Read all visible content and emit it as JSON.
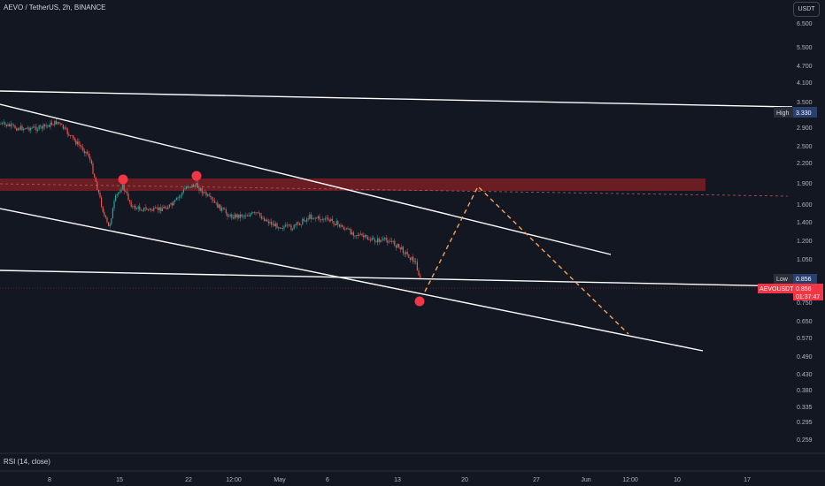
{
  "header": {
    "title": "AEVO / TetherUS, 2h, BINANCE",
    "currency_button": "USDT"
  },
  "indicator": {
    "label": "RSI (14, close)"
  },
  "price_axis": {
    "ticks": [
      "6.500",
      "5.500",
      "4.700",
      "4.100",
      "3.500",
      "2.900",
      "2.500",
      "2.200",
      "1.900",
      "1.600",
      "1.400",
      "1.200",
      "1.050",
      "0.750",
      "0.650",
      "0.570",
      "0.490",
      "0.430",
      "0.380",
      "0.335",
      "0.295",
      "0.259"
    ]
  },
  "time_axis": {
    "ticks": [
      "8",
      "15",
      "22",
      "12:00",
      "May",
      "6",
      "13",
      "20",
      "27",
      "Jun",
      "12:00",
      "10",
      "17"
    ]
  },
  "badges": {
    "high": {
      "label": "High",
      "value": "3.330"
    },
    "low": {
      "label": "Low",
      "value": "0.856"
    },
    "symbol": {
      "label": "AEVOUSDT",
      "value": "0.856",
      "countdown": "01:37:47"
    }
  },
  "colors": {
    "background": "#131722",
    "zone": "#7a1f23",
    "marker": "#f23645",
    "projection": "#f7a35c",
    "trendline": "#ffffff",
    "candle_up": "#26a69a",
    "candle_down": "#ef5350"
  }
}
